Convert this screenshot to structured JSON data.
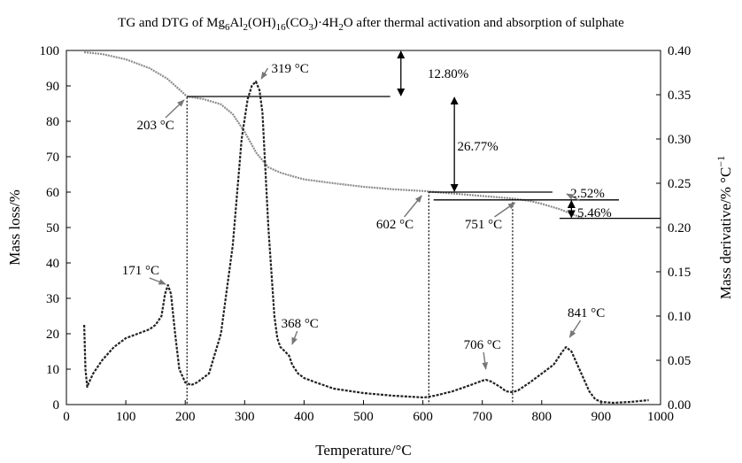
{
  "chart_data": {
    "type": "line",
    "title_parts": [
      {
        "t": "TG and DTG of Mg",
        "sub": false
      },
      {
        "t": "6",
        "sub": true
      },
      {
        "t": "Al",
        "sub": false
      },
      {
        "t": "2",
        "sub": true
      },
      {
        "t": "(OH)",
        "sub": false
      },
      {
        "t": "16",
        "sub": true
      },
      {
        "t": "(CO",
        "sub": false
      },
      {
        "t": "3",
        "sub": true
      },
      {
        "t": ")·4H",
        "sub": false
      },
      {
        "t": "2",
        "sub": true
      },
      {
        "t": "O after thermal activation and absorption of sulphate",
        "sub": false
      }
    ],
    "xlabel": "Temperature/°C",
    "ylabel_left": "Mass loss/%",
    "ylabel_right_parts": [
      {
        "t": "Mass derivative/% °C",
        "sup": false
      },
      {
        "t": "−1",
        "sup": true
      }
    ],
    "xlim": [
      0,
      1000
    ],
    "ylim_left": [
      0,
      100
    ],
    "ylim_right": [
      0,
      0.4
    ],
    "x_ticks": [
      0,
      100,
      200,
      300,
      400,
      500,
      600,
      700,
      800,
      900,
      1000
    ],
    "y_left_ticks": [
      0,
      10,
      20,
      30,
      40,
      50,
      60,
      70,
      80,
      90,
      100
    ],
    "y_right_ticks": [
      "0.00",
      "0.05",
      "0.10",
      "0.15",
      "0.20",
      "0.25",
      "0.30",
      "0.35",
      "0.40"
    ],
    "grid": false,
    "series": [
      {
        "axis": "left",
        "color": "#8c8c8c",
        "x": [
          30,
          60,
          100,
          140,
          170,
          190,
          203,
          230,
          260,
          280,
          300,
          320,
          340,
          360,
          380,
          400,
          450,
          500,
          550,
          602,
          650,
          700,
          751,
          780,
          800,
          830,
          860,
          870
        ],
        "y": [
          99.5,
          99,
          97.5,
          95,
          92,
          89,
          87,
          86.3,
          84.8,
          82,
          77,
          71,
          67,
          65.5,
          64.5,
          63.6,
          62.5,
          61.5,
          60.8,
          60.3,
          59.6,
          58.9,
          58.2,
          57.5,
          56.7,
          55.2,
          53.2,
          52.5
        ]
      },
      {
        "axis": "right",
        "color": "#222222",
        "x": [
          30,
          32,
          35,
          38,
          45,
          60,
          80,
          100,
          120,
          140,
          150,
          160,
          166,
          171,
          176,
          183,
          190,
          200,
          210,
          220,
          240,
          260,
          280,
          295,
          305,
          312,
          319,
          325,
          330,
          340,
          350,
          355,
          360,
          368,
          375,
          380,
          390,
          400,
          420,
          450,
          500,
          550,
          602,
          620,
          650,
          680,
          700,
          706,
          715,
          730,
          740,
          751,
          760,
          780,
          800,
          820,
          835,
          841,
          850,
          860,
          870,
          880,
          890,
          900,
          920,
          950,
          980
        ],
        "y": [
          0.09,
          0.04,
          0.02,
          0.025,
          0.035,
          0.05,
          0.065,
          0.075,
          0.08,
          0.085,
          0.09,
          0.1,
          0.125,
          0.135,
          0.125,
          0.08,
          0.04,
          0.025,
          0.022,
          0.025,
          0.035,
          0.08,
          0.18,
          0.3,
          0.345,
          0.36,
          0.365,
          0.355,
          0.33,
          0.2,
          0.1,
          0.075,
          0.065,
          0.06,
          0.055,
          0.045,
          0.035,
          0.03,
          0.025,
          0.018,
          0.013,
          0.01,
          0.008,
          0.01,
          0.015,
          0.022,
          0.027,
          0.028,
          0.026,
          0.02,
          0.015,
          0.014,
          0.016,
          0.025,
          0.035,
          0.045,
          0.06,
          0.065,
          0.06,
          0.045,
          0.03,
          0.015,
          0.006,
          0.003,
          0.002,
          0.003,
          0.005
        ]
      }
    ],
    "vertical_lines": [
      {
        "x": 203,
        "y_top": 86.8
      },
      {
        "x": 610,
        "y_top": 60.2
      },
      {
        "x": 751,
        "y_top": 58.2
      }
    ],
    "horizontal_lines": [
      {
        "x1": 203,
        "x2": 545,
        "y": 87
      },
      {
        "x1": 610,
        "x2": 818,
        "y": 60
      },
      {
        "x1": 618,
        "x2": 930,
        "y": 57.8
      },
      {
        "x1": 830,
        "x2": 1000,
        "y": 52.6
      }
    ],
    "arrows_double": [
      {
        "x": 563,
        "y1": 100,
        "y2": 87,
        "label": "12.80%",
        "label_x": 608,
        "label_y": 93.5
      },
      {
        "x": 653,
        "y1": 87,
        "y2": 60,
        "label": "26.77%",
        "label_x": 658,
        "label_y": 73
      },
      {
        "x": 850,
        "y1": 57.8,
        "y2": 52.6,
        "label": "5.46%",
        "label_x": 860,
        "label_y": 54.2
      }
    ],
    "annotations": [
      {
        "text": "319 °C",
        "x": 345,
        "y": 95,
        "ax": 328,
        "ay": 92,
        "anchor": "start"
      },
      {
        "text": "203 °C",
        "x": 150,
        "y": 79,
        "ax": 198,
        "ay": 86,
        "anchor": "middle"
      },
      {
        "text": "171 °C",
        "x": 125,
        "y": 38,
        "ax": 167,
        "ay": 34,
        "anchor": "middle"
      },
      {
        "text": "368 °C",
        "x": 393,
        "y": 23,
        "ax": 380,
        "ay": 17,
        "anchor": "middle"
      },
      {
        "text": "602 °C",
        "x": 553,
        "y": 51,
        "ax": 598,
        "ay": 59,
        "anchor": "middle"
      },
      {
        "text": "751 °C",
        "x": 702,
        "y": 51,
        "ax": 755,
        "ay": 57,
        "anchor": "middle"
      },
      {
        "text": "706 °C",
        "x": 700,
        "y": 17,
        "ax": 706,
        "ay": 10,
        "anchor": "middle"
      },
      {
        "text": "841 °C",
        "x": 875,
        "y": 26,
        "ax": 847,
        "ay": 19,
        "anchor": "middle"
      },
      {
        "text": "2.52%",
        "x": 877,
        "y": 59.8,
        "ax": 842,
        "ay": 59.5,
        "anchor": "middle"
      }
    ]
  }
}
